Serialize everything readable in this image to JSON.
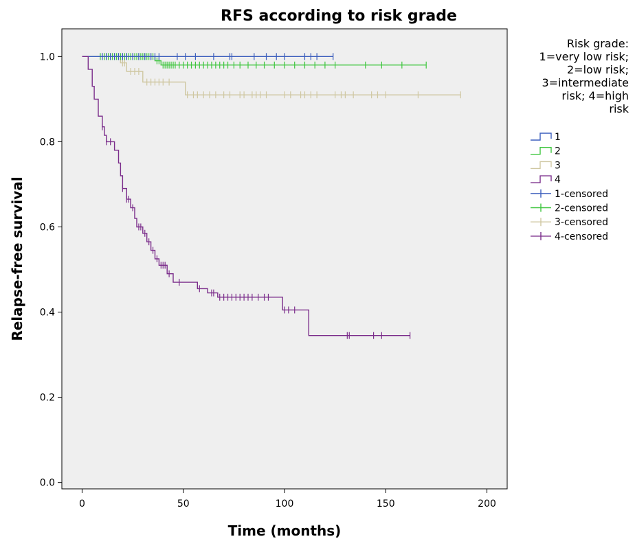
{
  "chart_data": {
    "type": "line",
    "subtype": "kaplan-meier step plot",
    "title": "RFS according to risk grade",
    "xlabel": "Time (months)",
    "ylabel": "Relapse-free survival",
    "xlim": [
      -10,
      210
    ],
    "ylim": [
      -0.015,
      1.065
    ],
    "xticks": [
      0,
      50,
      100,
      150,
      200
    ],
    "xtick_labels": [
      "0",
      "50",
      "100",
      "150",
      "200"
    ],
    "yticks": [
      0.0,
      0.2,
      0.4,
      0.6,
      0.8,
      1.0
    ],
    "ytick_labels": [
      "0.0",
      "0.2",
      "0.4",
      "0.6",
      "0.8",
      "1.0"
    ],
    "grid": false,
    "plot_background": "#efefef",
    "legend": {
      "placement": "right",
      "title_lines": [
        "Risk grade:",
        "1=very low risk;",
        "2=low risk;",
        "3=intermediate",
        "risk; 4=high",
        "risk"
      ],
      "entries": [
        {
          "label": "1",
          "kind": "step",
          "color": "#3b5ebd"
        },
        {
          "label": "2",
          "kind": "step",
          "color": "#3ec63e"
        },
        {
          "label": "3",
          "kind": "step",
          "color": "#cfc7a1"
        },
        {
          "label": "4",
          "kind": "step",
          "color": "#7b2d8b"
        },
        {
          "label": "1-censored",
          "kind": "censor",
          "color": "#3b5ebd"
        },
        {
          "label": "2-censored",
          "kind": "censor",
          "color": "#3ec63e"
        },
        {
          "label": "3-censored",
          "kind": "censor",
          "color": "#cfc7a1"
        },
        {
          "label": "4-censored",
          "kind": "censor",
          "color": "#7b2d8b"
        }
      ]
    },
    "series": [
      {
        "name": "1",
        "color": "#3b5ebd",
        "steps": [
          [
            0,
            1.0
          ],
          [
            124,
            1.0
          ]
        ],
        "censored": [
          [
            10,
            1.0
          ],
          [
            12,
            1.0
          ],
          [
            14,
            1.0
          ],
          [
            16,
            1.0
          ],
          [
            18,
            1.0
          ],
          [
            20,
            1.0
          ],
          [
            22,
            1.0
          ],
          [
            25,
            1.0
          ],
          [
            28,
            1.0
          ],
          [
            31,
            1.0
          ],
          [
            34,
            1.0
          ],
          [
            36,
            1.0
          ],
          [
            38,
            1.0
          ],
          [
            47,
            1.0
          ],
          [
            51,
            1.0
          ],
          [
            56,
            1.0
          ],
          [
            65,
            1.0
          ],
          [
            73,
            1.0
          ],
          [
            74,
            1.0
          ],
          [
            85,
            1.0
          ],
          [
            91,
            1.0
          ],
          [
            96,
            1.0
          ],
          [
            100,
            1.0
          ],
          [
            110,
            1.0
          ],
          [
            113,
            1.0
          ],
          [
            116,
            1.0
          ],
          [
            124,
            1.0
          ]
        ]
      },
      {
        "name": "2",
        "color": "#3ec63e",
        "steps": [
          [
            0,
            1.0
          ],
          [
            36,
            1.0
          ],
          [
            36,
            0.99
          ],
          [
            39,
            0.99
          ],
          [
            39,
            0.98
          ],
          [
            170,
            0.98
          ]
        ],
        "censored": [
          [
            9,
            1.0
          ],
          [
            10,
            1.0
          ],
          [
            11,
            1.0
          ],
          [
            12,
            1.0
          ],
          [
            13,
            1.0
          ],
          [
            14,
            1.0
          ],
          [
            15,
            1.0
          ],
          [
            16,
            1.0
          ],
          [
            17,
            1.0
          ],
          [
            18,
            1.0
          ],
          [
            19,
            1.0
          ],
          [
            20,
            1.0
          ],
          [
            21,
            1.0
          ],
          [
            22,
            1.0
          ],
          [
            23,
            1.0
          ],
          [
            24,
            1.0
          ],
          [
            25,
            1.0
          ],
          [
            26,
            1.0
          ],
          [
            27,
            1.0
          ],
          [
            28,
            1.0
          ],
          [
            29,
            1.0
          ],
          [
            30,
            1.0
          ],
          [
            31,
            1.0
          ],
          [
            32,
            1.0
          ],
          [
            33,
            1.0
          ],
          [
            34,
            1.0
          ],
          [
            35,
            1.0
          ],
          [
            37,
            0.99
          ],
          [
            38,
            0.99
          ],
          [
            40,
            0.98
          ],
          [
            41,
            0.98
          ],
          [
            42,
            0.98
          ],
          [
            43,
            0.98
          ],
          [
            44,
            0.98
          ],
          [
            45,
            0.98
          ],
          [
            46,
            0.98
          ],
          [
            48,
            0.98
          ],
          [
            50,
            0.98
          ],
          [
            52,
            0.98
          ],
          [
            54,
            0.98
          ],
          [
            56,
            0.98
          ],
          [
            58,
            0.98
          ],
          [
            60,
            0.98
          ],
          [
            62,
            0.98
          ],
          [
            64,
            0.98
          ],
          [
            66,
            0.98
          ],
          [
            68,
            0.98
          ],
          [
            70,
            0.98
          ],
          [
            72,
            0.98
          ],
          [
            75,
            0.98
          ],
          [
            78,
            0.98
          ],
          [
            82,
            0.98
          ],
          [
            86,
            0.98
          ],
          [
            90,
            0.98
          ],
          [
            95,
            0.98
          ],
          [
            100,
            0.98
          ],
          [
            105,
            0.98
          ],
          [
            110,
            0.98
          ],
          [
            115,
            0.98
          ],
          [
            120,
            0.98
          ],
          [
            125,
            0.98
          ],
          [
            140,
            0.98
          ],
          [
            148,
            0.98
          ],
          [
            158,
            0.98
          ],
          [
            170,
            0.98
          ]
        ]
      },
      {
        "name": "3",
        "color": "#cfc7a1",
        "steps": [
          [
            0,
            1.0
          ],
          [
            19,
            1.0
          ],
          [
            19,
            0.985
          ],
          [
            22,
            0.985
          ],
          [
            22,
            0.965
          ],
          [
            30,
            0.965
          ],
          [
            30,
            0.94
          ],
          [
            51,
            0.94
          ],
          [
            51,
            0.91
          ],
          [
            187,
            0.91
          ]
        ],
        "censored": [
          [
            11,
            1.0
          ],
          [
            13,
            1.0
          ],
          [
            20,
            0.985
          ],
          [
            21,
            0.985
          ],
          [
            24,
            0.965
          ],
          [
            26,
            0.965
          ],
          [
            28,
            0.965
          ],
          [
            32,
            0.94
          ],
          [
            34,
            0.94
          ],
          [
            36,
            0.94
          ],
          [
            38,
            0.94
          ],
          [
            40,
            0.94
          ],
          [
            43,
            0.94
          ],
          [
            52,
            0.91
          ],
          [
            55,
            0.91
          ],
          [
            57,
            0.91
          ],
          [
            60,
            0.91
          ],
          [
            63,
            0.91
          ],
          [
            66,
            0.91
          ],
          [
            70,
            0.91
          ],
          [
            73,
            0.91
          ],
          [
            78,
            0.91
          ],
          [
            80,
            0.91
          ],
          [
            84,
            0.91
          ],
          [
            86,
            0.91
          ],
          [
            88,
            0.91
          ],
          [
            91,
            0.91
          ],
          [
            100,
            0.91
          ],
          [
            103,
            0.91
          ],
          [
            108,
            0.91
          ],
          [
            110,
            0.91
          ],
          [
            113,
            0.91
          ],
          [
            116,
            0.91
          ],
          [
            125,
            0.91
          ],
          [
            128,
            0.91
          ],
          [
            130,
            0.91
          ],
          [
            134,
            0.91
          ],
          [
            143,
            0.91
          ],
          [
            146,
            0.91
          ],
          [
            150,
            0.91
          ],
          [
            166,
            0.91
          ],
          [
            187,
            0.91
          ]
        ]
      },
      {
        "name": "4",
        "color": "#7b2d8b",
        "steps": [
          [
            0,
            1.0
          ],
          [
            3,
            1.0
          ],
          [
            3,
            0.97
          ],
          [
            5,
            0.97
          ],
          [
            5,
            0.93
          ],
          [
            6,
            0.93
          ],
          [
            6,
            0.9
          ],
          [
            8,
            0.9
          ],
          [
            8,
            0.86
          ],
          [
            10,
            0.86
          ],
          [
            10,
            0.835
          ],
          [
            11,
            0.835
          ],
          [
            11,
            0.815
          ],
          [
            12,
            0.815
          ],
          [
            12,
            0.8
          ],
          [
            16,
            0.8
          ],
          [
            16,
            0.78
          ],
          [
            18,
            0.78
          ],
          [
            18,
            0.75
          ],
          [
            19,
            0.75
          ],
          [
            19,
            0.72
          ],
          [
            20,
            0.72
          ],
          [
            20,
            0.69
          ],
          [
            22,
            0.69
          ],
          [
            22,
            0.665
          ],
          [
            24,
            0.665
          ],
          [
            24,
            0.645
          ],
          [
            26,
            0.645
          ],
          [
            26,
            0.62
          ],
          [
            27,
            0.62
          ],
          [
            27,
            0.6
          ],
          [
            30,
            0.6
          ],
          [
            30,
            0.585
          ],
          [
            32,
            0.585
          ],
          [
            32,
            0.565
          ],
          [
            34,
            0.565
          ],
          [
            34,
            0.545
          ],
          [
            36,
            0.545
          ],
          [
            36,
            0.525
          ],
          [
            38,
            0.525
          ],
          [
            38,
            0.51
          ],
          [
            42,
            0.51
          ],
          [
            42,
            0.49
          ],
          [
            45,
            0.49
          ],
          [
            45,
            0.47
          ],
          [
            57,
            0.47
          ],
          [
            57,
            0.455
          ],
          [
            62,
            0.455
          ],
          [
            62,
            0.445
          ],
          [
            67,
            0.445
          ],
          [
            67,
            0.435
          ],
          [
            99,
            0.435
          ],
          [
            99,
            0.405
          ],
          [
            112,
            0.405
          ],
          [
            112,
            0.345
          ],
          [
            162,
            0.345
          ]
        ],
        "censored": [
          [
            10,
            0.835
          ],
          [
            12,
            0.8
          ],
          [
            14,
            0.8
          ],
          [
            20,
            0.69
          ],
          [
            22,
            0.665
          ],
          [
            23,
            0.665
          ],
          [
            25,
            0.645
          ],
          [
            28,
            0.6
          ],
          [
            29,
            0.6
          ],
          [
            31,
            0.585
          ],
          [
            33,
            0.565
          ],
          [
            35,
            0.545
          ],
          [
            37,
            0.525
          ],
          [
            39,
            0.51
          ],
          [
            40,
            0.51
          ],
          [
            41,
            0.51
          ],
          [
            43,
            0.49
          ],
          [
            48,
            0.47
          ],
          [
            58,
            0.455
          ],
          [
            64,
            0.445
          ],
          [
            65,
            0.445
          ],
          [
            68,
            0.435
          ],
          [
            70,
            0.435
          ],
          [
            72,
            0.435
          ],
          [
            74,
            0.435
          ],
          [
            76,
            0.435
          ],
          [
            78,
            0.435
          ],
          [
            80,
            0.435
          ],
          [
            82,
            0.435
          ],
          [
            84,
            0.435
          ],
          [
            87,
            0.435
          ],
          [
            90,
            0.435
          ],
          [
            92,
            0.435
          ],
          [
            100,
            0.405
          ],
          [
            102,
            0.405
          ],
          [
            105,
            0.405
          ],
          [
            131,
            0.345
          ],
          [
            132,
            0.345
          ],
          [
            144,
            0.345
          ],
          [
            148,
            0.345
          ],
          [
            162,
            0.345
          ]
        ]
      }
    ]
  }
}
